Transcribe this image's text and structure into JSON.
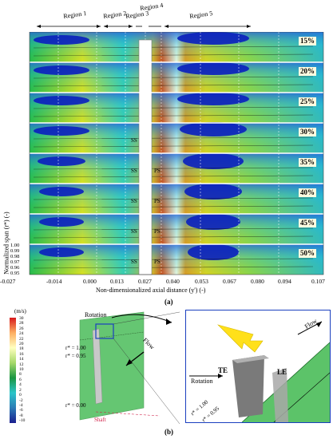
{
  "regions": [
    "Region 1",
    "Region 2",
    "Region 3",
    "Region 4",
    "Region 5"
  ],
  "span_labels": [
    "15%",
    "20%",
    "25%",
    "30%",
    "35%",
    "40%",
    "45%",
    "50%"
  ],
  "side_labels": {
    "ss": "SS",
    "ps": "PS"
  },
  "x_axis": {
    "ticks": [
      "-0.027",
      "-0.014",
      "0.000",
      "0.013",
      "0.027",
      "0.040",
      "0.053",
      "0.067",
      "0.080",
      "0.094",
      "0.107"
    ],
    "label": "Non-dimensionalized axial distance (y') (-)"
  },
  "y_axis": {
    "label": "Normalized span (r*) (-)",
    "ticks": [
      "1.00",
      "0.99",
      "0.98",
      "0.97",
      "0.96",
      "0.95"
    ]
  },
  "caption_a": "(a)",
  "caption_b": "(b)",
  "colorbar": {
    "unit": "(m/s)",
    "labels": [
      "30",
      "28",
      "26",
      "24",
      "22",
      "20",
      "18",
      "16",
      "14",
      "12",
      "10",
      "8",
      "6",
      "4",
      "2",
      "0",
      "-2",
      "-4",
      "-6",
      "-8",
      "-10"
    ]
  },
  "panel_b": {
    "rotation": "Rotation",
    "flow": "Flow",
    "r_top": "r* = 1.00",
    "r_mid": "r* = 0.95",
    "r_bottom": "r* = 0.00",
    "shaft": "Shaft",
    "te": "TE",
    "le": "LE",
    "inset_rotation": "Rotation",
    "inset_flow": "Flow",
    "inset_r_top": "r* = 1.00",
    "inset_r_mid": "r* = 0.95"
  }
}
